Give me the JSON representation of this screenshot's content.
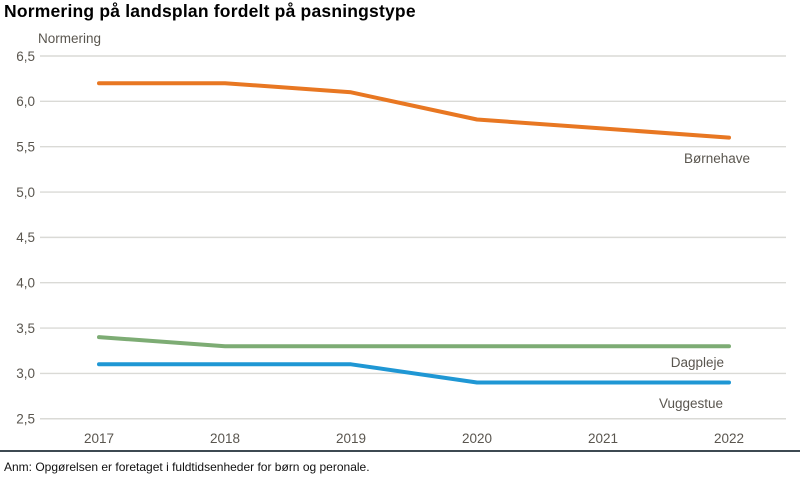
{
  "note": "Anm: Opgørelsen er foretaget i fuldtidsenheder for børn og peronale.",
  "colors": {
    "background": "#ffffff",
    "title_text": "#000000",
    "axis_text": "#5a564f",
    "gridline": "#dadad6",
    "separator": "#3d4a52",
    "note_text": "#111111"
  },
  "chart_data": {
    "type": "line",
    "title": "Normering på landsplan fordelt på pasningstype",
    "ylabel": "Normering",
    "xlabel": "",
    "grid": true,
    "legend_position": "end-of-line-labels",
    "ylim": [
      2.5,
      6.5
    ],
    "ytick_values": [
      6.5,
      6.0,
      5.5,
      5.0,
      4.5,
      4.0,
      3.5,
      3.0,
      2.5
    ],
    "ytick_labels": [
      "6,5",
      "6,0",
      "5,5",
      "5,0",
      "4,5",
      "4,0",
      "3,5",
      "3,0",
      "2,5"
    ],
    "categories": [
      "2017",
      "2018",
      "2019",
      "2020",
      "2021",
      "2022"
    ],
    "series": [
      {
        "name": "Børnehave",
        "color": "#e87722",
        "values": [
          6.2,
          6.2,
          6.1,
          5.8,
          5.7,
          5.6
        ]
      },
      {
        "name": "Dagpleje",
        "color": "#7dac74",
        "values": [
          3.4,
          3.3,
          3.3,
          3.3,
          3.3,
          3.3
        ]
      },
      {
        "name": "Vuggestue",
        "color": "#1f97d4",
        "values": [
          3.1,
          3.1,
          3.1,
          2.9,
          2.9,
          2.9
        ]
      }
    ]
  }
}
